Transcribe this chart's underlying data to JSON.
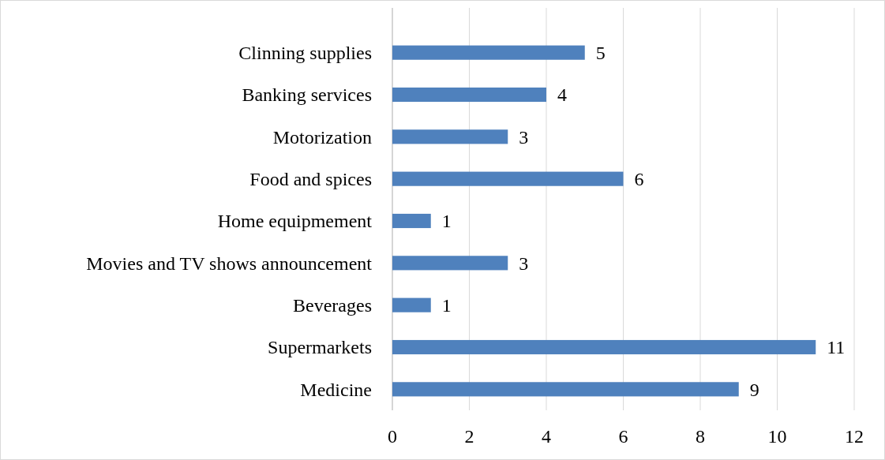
{
  "chart_data": {
    "type": "bar",
    "orientation": "horizontal",
    "categories": [
      "Clinning supplies",
      "Banking services",
      "Motorization",
      "Food and spices",
      "Home equipmement",
      "Movies and TV shows announcement",
      "Beverages",
      "Supermarkets",
      "Medicine"
    ],
    "values": [
      5,
      4,
      3,
      6,
      1,
      3,
      1,
      11,
      9
    ],
    "color": "#4f81bd",
    "xlim": [
      0,
      12
    ],
    "xticks": [
      0,
      2,
      4,
      6,
      8,
      10,
      12
    ],
    "grid": "x",
    "data_labels": true
  }
}
